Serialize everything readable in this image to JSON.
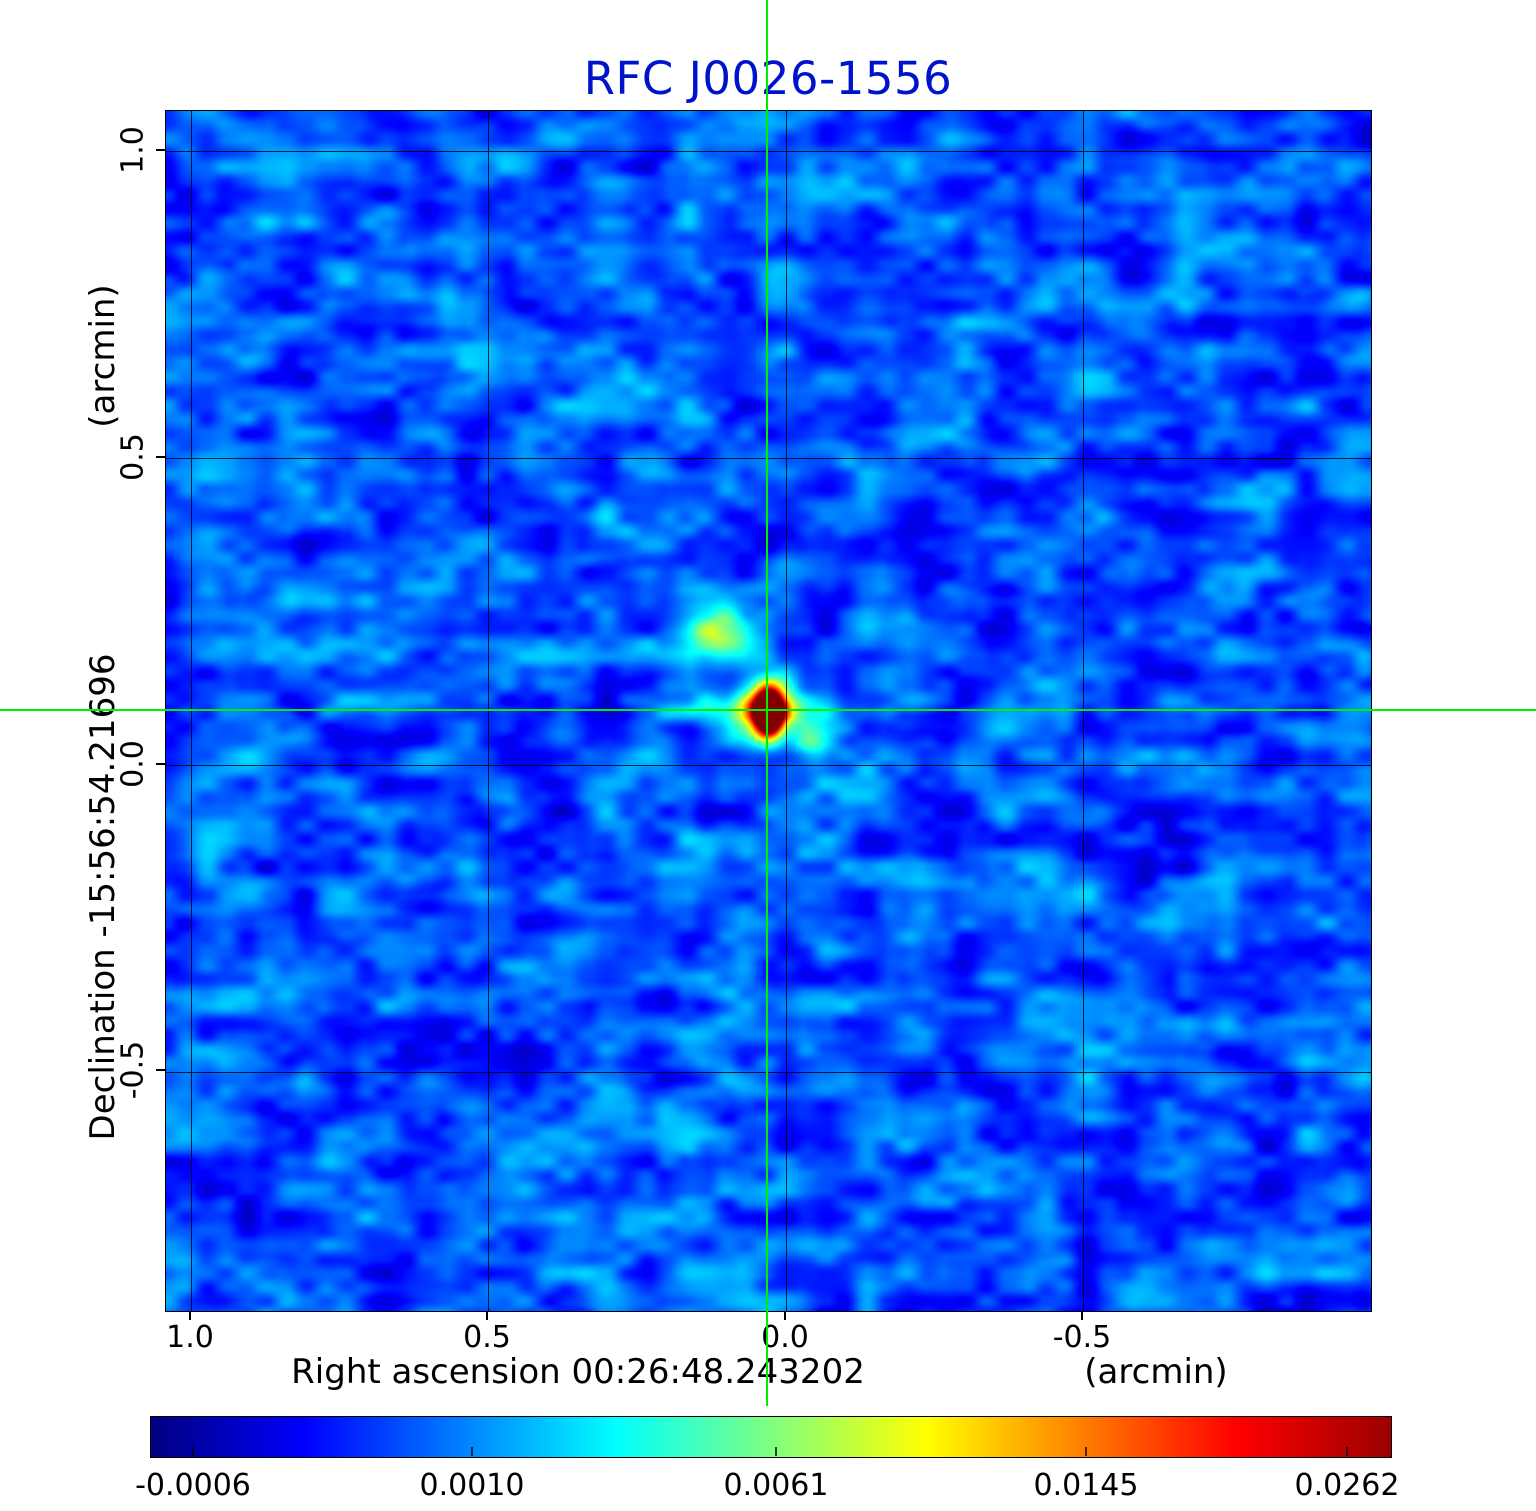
{
  "chart_data": {
    "type": "heatmap",
    "title": "RFC J0026-1556",
    "title_color": "#0013cc",
    "xlabel": "Right ascension  00:26:48.243202",
    "xunit": "(arcmin)",
    "ylabel": "Declination  -15:56:54.21696",
    "yunit": "(arcmin)",
    "x_ticks": [
      "1.0",
      "0.5",
      "0.0",
      "-0.5"
    ],
    "y_ticks": [
      "1.0",
      "0.5",
      "0.0",
      "-0.5"
    ],
    "x_range_arcmin": [
      1.04,
      -0.98
    ],
    "y_range_arcmin": [
      -1.07,
      1.07
    ],
    "grid": true,
    "colormap": "jet",
    "colormap_stops": [
      [
        0,
        "#000080"
      ],
      [
        12.5,
        "#0000ff"
      ],
      [
        37.5,
        "#00ffff"
      ],
      [
        62.5,
        "#ffff00"
      ],
      [
        87.5,
        "#ff0000"
      ],
      [
        100,
        "#9b0000"
      ]
    ],
    "colorbar_ticks": [
      "-0.0006",
      "0.0010",
      "0.0061",
      "0.0145",
      "0.0262"
    ],
    "value_range_jy": [
      -0.0006,
      0.0262
    ],
    "crosshair_color": "#00ee00",
    "source": {
      "name": "RFC J0026-1556",
      "ra": "00:26:48.243202",
      "dec": "-15:56:54.21696",
      "peak_value": 0.0262,
      "peak_offset_arcmin": {
        "ra": 0.03,
        "dec": 0.09
      }
    },
    "features": [
      {
        "kind": "compact-bright-source",
        "ra_offset_arcmin": 0.03,
        "dec_offset_arcmin": 0.09,
        "peak": 0.0262
      },
      {
        "kind": "secondary-cyan-blob",
        "ra_offset_arcmin": 0.12,
        "dec_offset_arcmin": 0.22
      },
      {
        "kind": "faint-cyan-blob",
        "ra_offset_arcmin": -0.05,
        "dec_offset_arcmin": 0.03
      }
    ]
  }
}
